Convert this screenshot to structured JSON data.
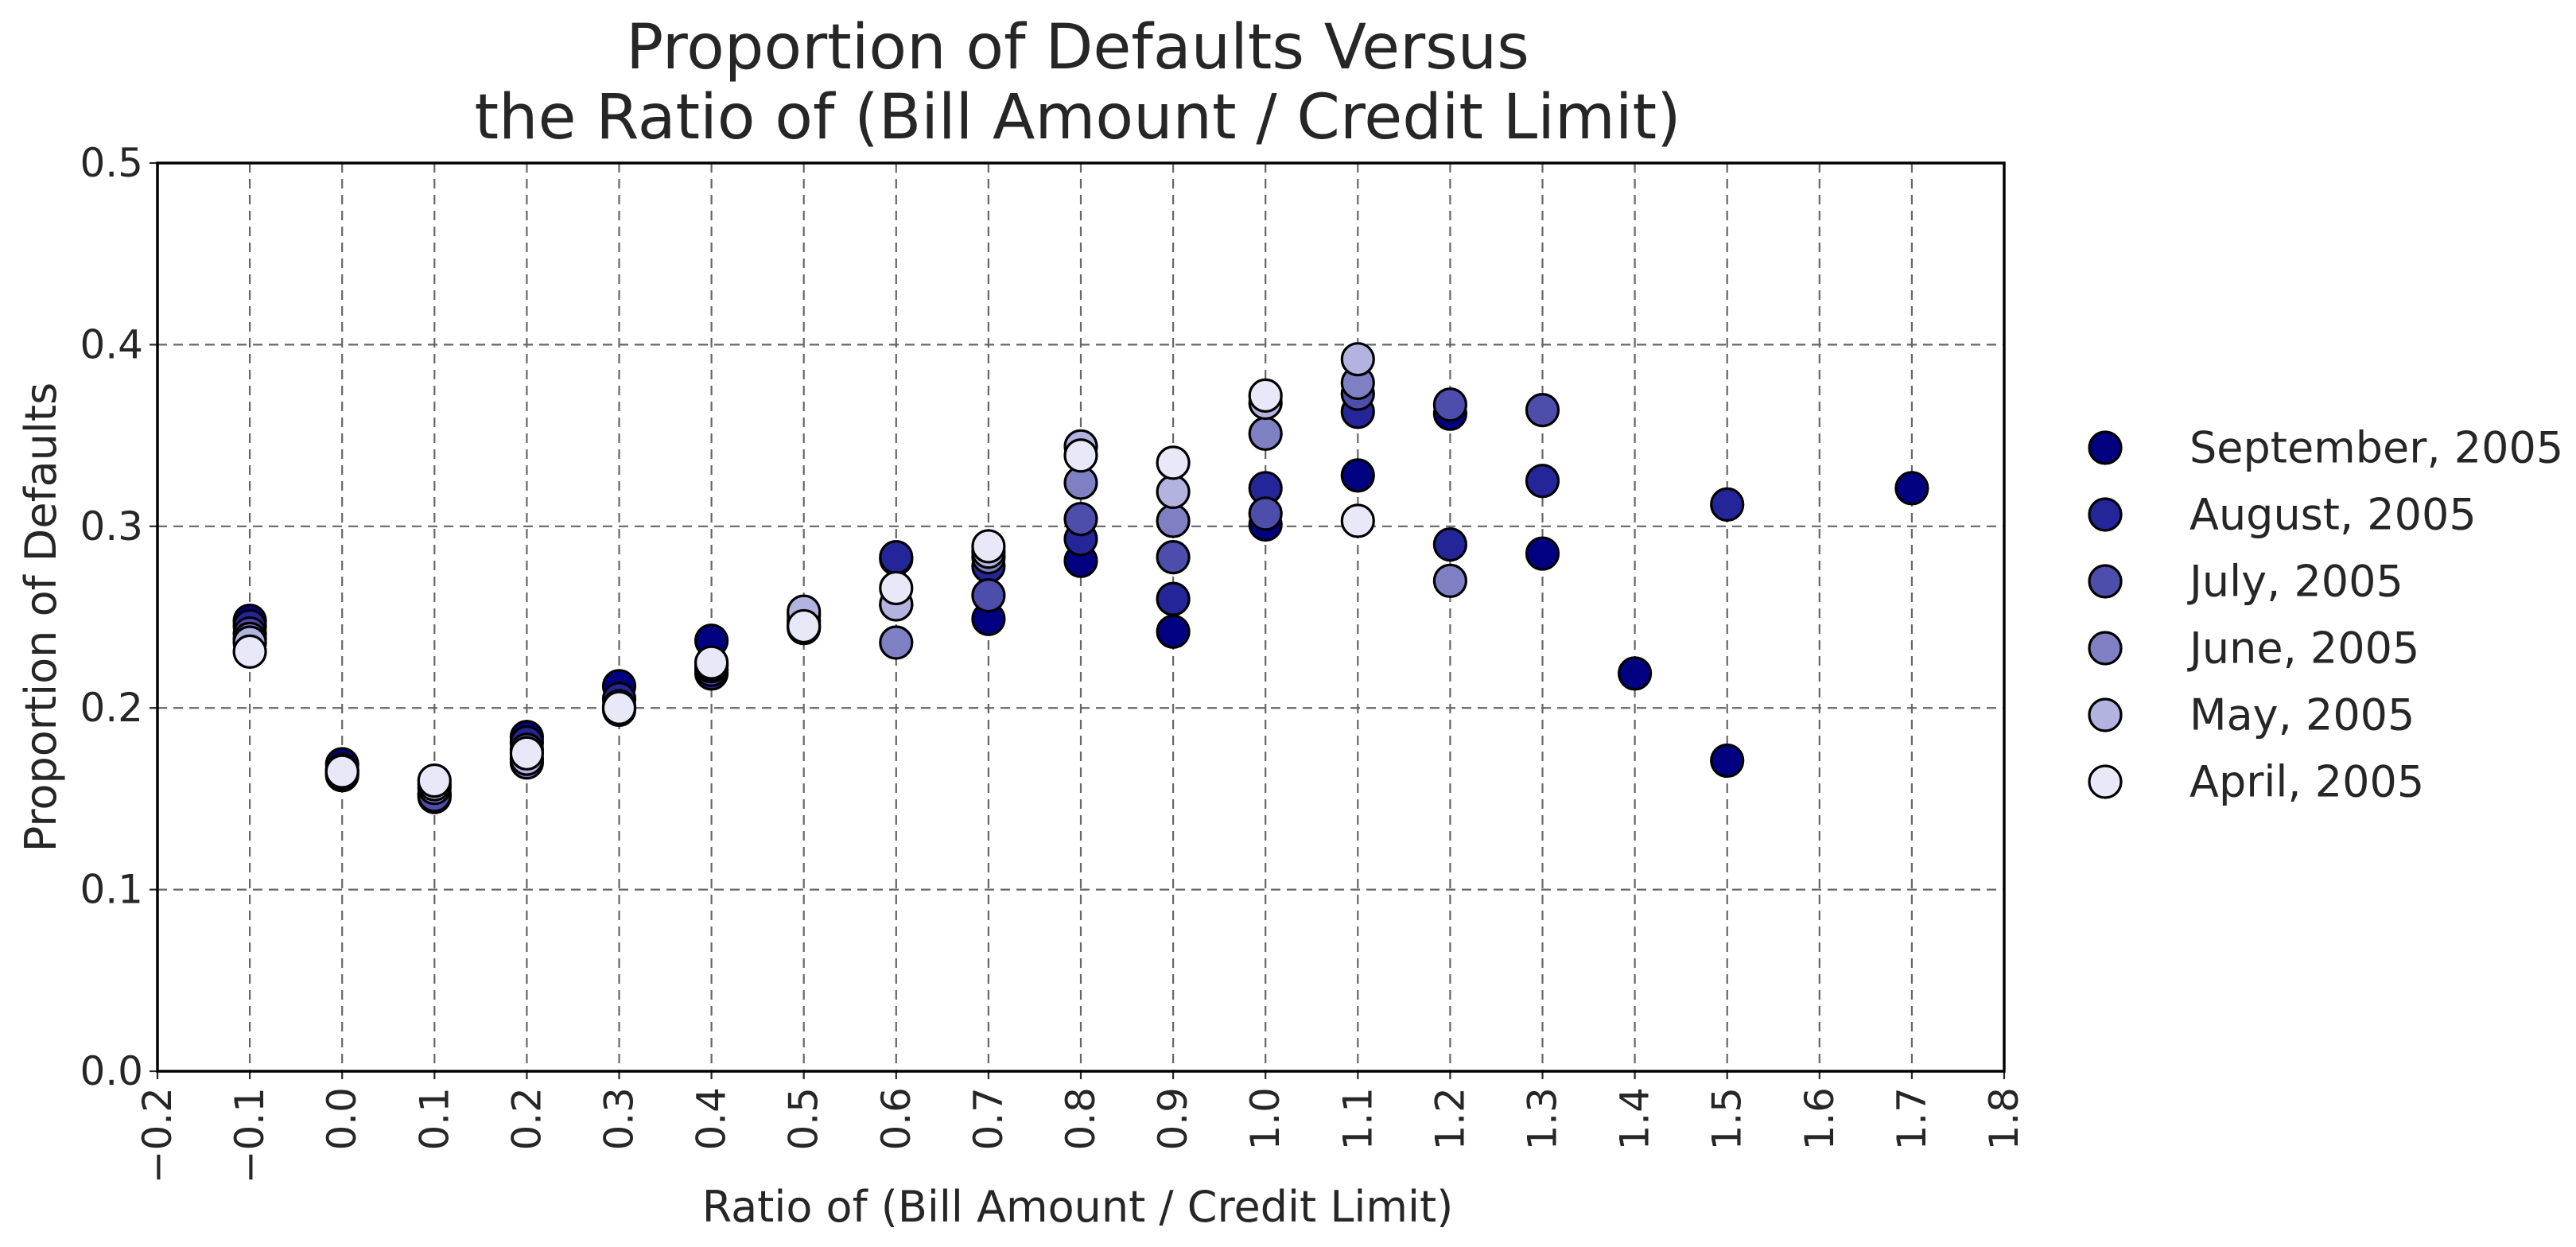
{
  "chart_data": {
    "type": "scatter",
    "title_lines": [
      "Proportion of Defaults Versus",
      "the Ratio of (Bill Amount / Credit Limit)"
    ],
    "xlabel": "Ratio of (Bill Amount / Credit Limit)",
    "ylabel": "Proportion of Defaults",
    "xlim": [
      -0.2,
      1.8
    ],
    "ylim": [
      0.0,
      0.5
    ],
    "x_ticks": [
      "−0.2",
      "−0.1",
      "0.0",
      "0.1",
      "0.2",
      "0.3",
      "0.4",
      "0.5",
      "0.6",
      "0.7",
      "0.8",
      "0.9",
      "1.0",
      "1.1",
      "1.2",
      "1.3",
      "1.4",
      "1.5",
      "1.6",
      "1.7",
      "1.8"
    ],
    "y_ticks": [
      "0.0",
      "0.1",
      "0.2",
      "0.3",
      "0.4",
      "0.5"
    ],
    "grid": true,
    "legend_position": "right",
    "series": [
      {
        "name": "September, 2005",
        "color": "#000080",
        "points": [
          [
            -0.1,
            0.248
          ],
          [
            0.0,
            0.169
          ],
          [
            0.1,
            0.153
          ],
          [
            0.2,
            0.184
          ],
          [
            0.3,
            0.212
          ],
          [
            0.4,
            0.237
          ],
          [
            0.5,
            0.244
          ],
          [
            0.6,
            0.282
          ],
          [
            0.7,
            0.249
          ],
          [
            0.8,
            0.281
          ],
          [
            0.9,
            0.242
          ],
          [
            1.0,
            0.301
          ],
          [
            1.1,
            0.328
          ],
          [
            1.2,
            0.362
          ],
          [
            1.3,
            0.285
          ],
          [
            1.4,
            0.219
          ],
          [
            1.5,
            0.171
          ],
          [
            1.7,
            0.321
          ]
        ]
      },
      {
        "name": "August, 2005",
        "color": "#25259a",
        "points": [
          [
            -0.1,
            0.245
          ],
          [
            0.0,
            0.163
          ],
          [
            0.1,
            0.151
          ],
          [
            0.2,
            0.181
          ],
          [
            0.3,
            0.205
          ],
          [
            0.4,
            0.219
          ],
          [
            0.5,
            0.246
          ],
          [
            0.6,
            0.283
          ],
          [
            0.7,
            0.278
          ],
          [
            0.8,
            0.293
          ],
          [
            0.9,
            0.26
          ],
          [
            1.0,
            0.321
          ],
          [
            1.1,
            0.363
          ],
          [
            1.2,
            0.29
          ],
          [
            1.3,
            0.325
          ],
          [
            1.5,
            0.312
          ]
        ]
      },
      {
        "name": "July, 2005",
        "color": "#4d4dab",
        "points": [
          [
            -0.1,
            0.241
          ],
          [
            0.0,
            0.164
          ],
          [
            0.1,
            0.152
          ],
          [
            0.2,
            0.177
          ],
          [
            0.3,
            0.201
          ],
          [
            0.4,
            0.221
          ],
          [
            0.5,
            0.248
          ],
          [
            0.6,
            0.257
          ],
          [
            0.7,
            0.262
          ],
          [
            0.8,
            0.304
          ],
          [
            0.9,
            0.283
          ],
          [
            1.0,
            0.307
          ],
          [
            1.1,
            0.373
          ],
          [
            1.2,
            0.367
          ],
          [
            1.3,
            0.364
          ]
        ]
      },
      {
        "name": "June, 2005",
        "color": "#7f7fc4",
        "points": [
          [
            -0.1,
            0.238
          ],
          [
            0.0,
            0.165
          ],
          [
            0.1,
            0.156
          ],
          [
            0.2,
            0.17
          ],
          [
            0.3,
            0.2
          ],
          [
            0.4,
            0.223
          ],
          [
            0.5,
            0.251
          ],
          [
            0.6,
            0.236
          ],
          [
            0.7,
            0.283
          ],
          [
            0.8,
            0.324
          ],
          [
            0.9,
            0.303
          ],
          [
            1.0,
            0.351
          ],
          [
            1.1,
            0.379
          ],
          [
            1.2,
            0.27
          ]
        ]
      },
      {
        "name": "May, 2005",
        "color": "#b3b3e0",
        "points": [
          [
            -0.1,
            0.236
          ],
          [
            0.0,
            0.166
          ],
          [
            0.1,
            0.158
          ],
          [
            0.2,
            0.172
          ],
          [
            0.3,
            0.199
          ],
          [
            0.4,
            0.224
          ],
          [
            0.5,
            0.253
          ],
          [
            0.6,
            0.257
          ],
          [
            0.7,
            0.286
          ],
          [
            0.8,
            0.344
          ],
          [
            0.9,
            0.319
          ],
          [
            1.0,
            0.368
          ],
          [
            1.1,
            0.392
          ]
        ]
      },
      {
        "name": "April, 2005",
        "color": "#e8e8f8",
        "points": [
          [
            -0.1,
            0.231
          ],
          [
            0.0,
            0.165
          ],
          [
            0.1,
            0.16
          ],
          [
            0.2,
            0.175
          ],
          [
            0.3,
            0.2
          ],
          [
            0.4,
            0.225
          ],
          [
            0.5,
            0.245
          ],
          [
            0.6,
            0.266
          ],
          [
            0.7,
            0.289
          ],
          [
            0.8,
            0.339
          ],
          [
            0.9,
            0.335
          ],
          [
            1.0,
            0.372
          ],
          [
            1.1,
            0.303
          ]
        ]
      }
    ]
  }
}
